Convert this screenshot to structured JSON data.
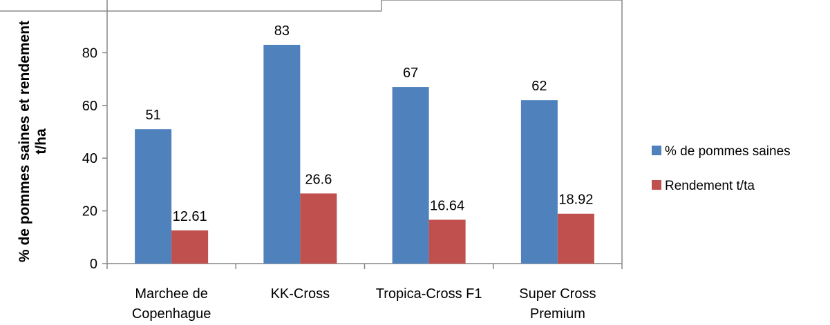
{
  "chart_data": {
    "type": "bar",
    "title": "",
    "xlabel": "",
    "ylabel_line1": "% de pommes saines et rendement",
    "ylabel_line2": "t/ha",
    "ylim": [
      0,
      100
    ],
    "yticks": [
      0,
      20,
      40,
      60,
      80
    ],
    "categories": [
      [
        "Marchee de",
        "Copenhague"
      ],
      [
        "KK-Cross"
      ],
      [
        "Tropica-Cross F1"
      ],
      [
        "Super Cross",
        "Premium"
      ]
    ],
    "series": [
      {
        "name": "% de pommes  saines",
        "color": "#4f81bd",
        "values": [
          51,
          83,
          67,
          62
        ],
        "labels": [
          "51",
          "83",
          "67",
          "62"
        ]
      },
      {
        "name": "Rendement t/ta",
        "color": "#c0504d",
        "values": [
          12.61,
          26.6,
          16.64,
          18.92
        ],
        "labels": [
          "12.61",
          "26.6",
          "16.64",
          "18.92"
        ]
      }
    ],
    "grid": false,
    "legend": "right"
  }
}
